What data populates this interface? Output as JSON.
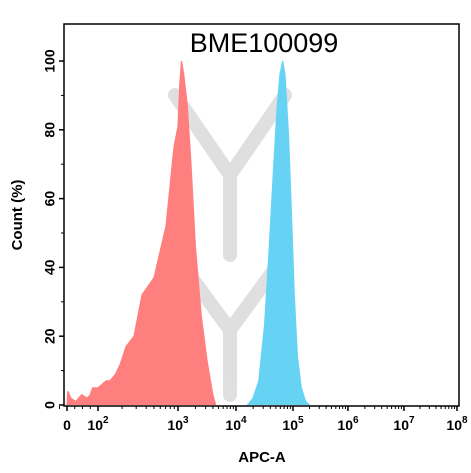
{
  "chart_data": {
    "type": "area",
    "title": "BME100099",
    "xlabel": "APC-A",
    "ylabel": "Count (%)",
    "x_scale": "biexponential",
    "xlim": [
      -1,
      8
    ],
    "ylim": [
      0,
      108
    ],
    "y_ticks": [
      {
        "value": 0,
        "label": "0"
      },
      {
        "value": 20,
        "label": "20"
      },
      {
        "value": 40,
        "label": "40"
      },
      {
        "value": 60,
        "label": "60"
      },
      {
        "value": 80,
        "label": "80"
      },
      {
        "value": 100,
        "label": "100"
      }
    ],
    "x_ticks": [
      {
        "value": 0,
        "base": "0",
        "exp": ""
      },
      {
        "value": 2,
        "base": "10",
        "exp": "2"
      },
      {
        "value": 3,
        "base": "10",
        "exp": "3"
      },
      {
        "value": 4,
        "base": "10",
        "exp": "4"
      },
      {
        "value": 5,
        "base": "10",
        "exp": "5"
      },
      {
        "value": 6,
        "base": "10",
        "exp": "6"
      },
      {
        "value": 7,
        "base": "10",
        "exp": "7"
      },
      {
        "value": 8,
        "base": "10",
        "exp": "8"
      }
    ],
    "series": [
      {
        "color": "#ff7f7f",
        "x": [
          0.0,
          0.05,
          0.25,
          0.55,
          0.95,
          1.3,
          1.5,
          1.65,
          1.85,
          2.0,
          2.1,
          2.15,
          2.22,
          2.28,
          2.35,
          2.45,
          2.55,
          2.7,
          2.85,
          2.95,
          3.0,
          3.03,
          3.06,
          3.1,
          3.16,
          3.22,
          3.3,
          3.4,
          3.5,
          3.6,
          3.65
        ],
        "y": [
          0,
          4,
          2,
          1,
          3,
          2,
          3,
          5,
          5,
          5,
          7,
          7,
          9,
          12,
          17,
          20,
          32,
          37,
          52,
          75,
          81,
          93,
          100,
          96,
          87,
          71,
          46,
          26,
          13,
          3,
          0
        ]
      },
      {
        "color": "#66d3f5",
        "x": [
          4.2,
          4.3,
          4.4,
          4.5,
          4.58,
          4.66,
          4.72,
          4.77,
          4.82,
          4.86,
          4.92,
          4.97,
          5.02,
          5.08,
          5.15,
          5.23,
          5.3
        ],
        "y": [
          0,
          2,
          7,
          23,
          45,
          69,
          86,
          96,
          100,
          96,
          79,
          57,
          33,
          14,
          5,
          1,
          0
        ]
      }
    ]
  }
}
